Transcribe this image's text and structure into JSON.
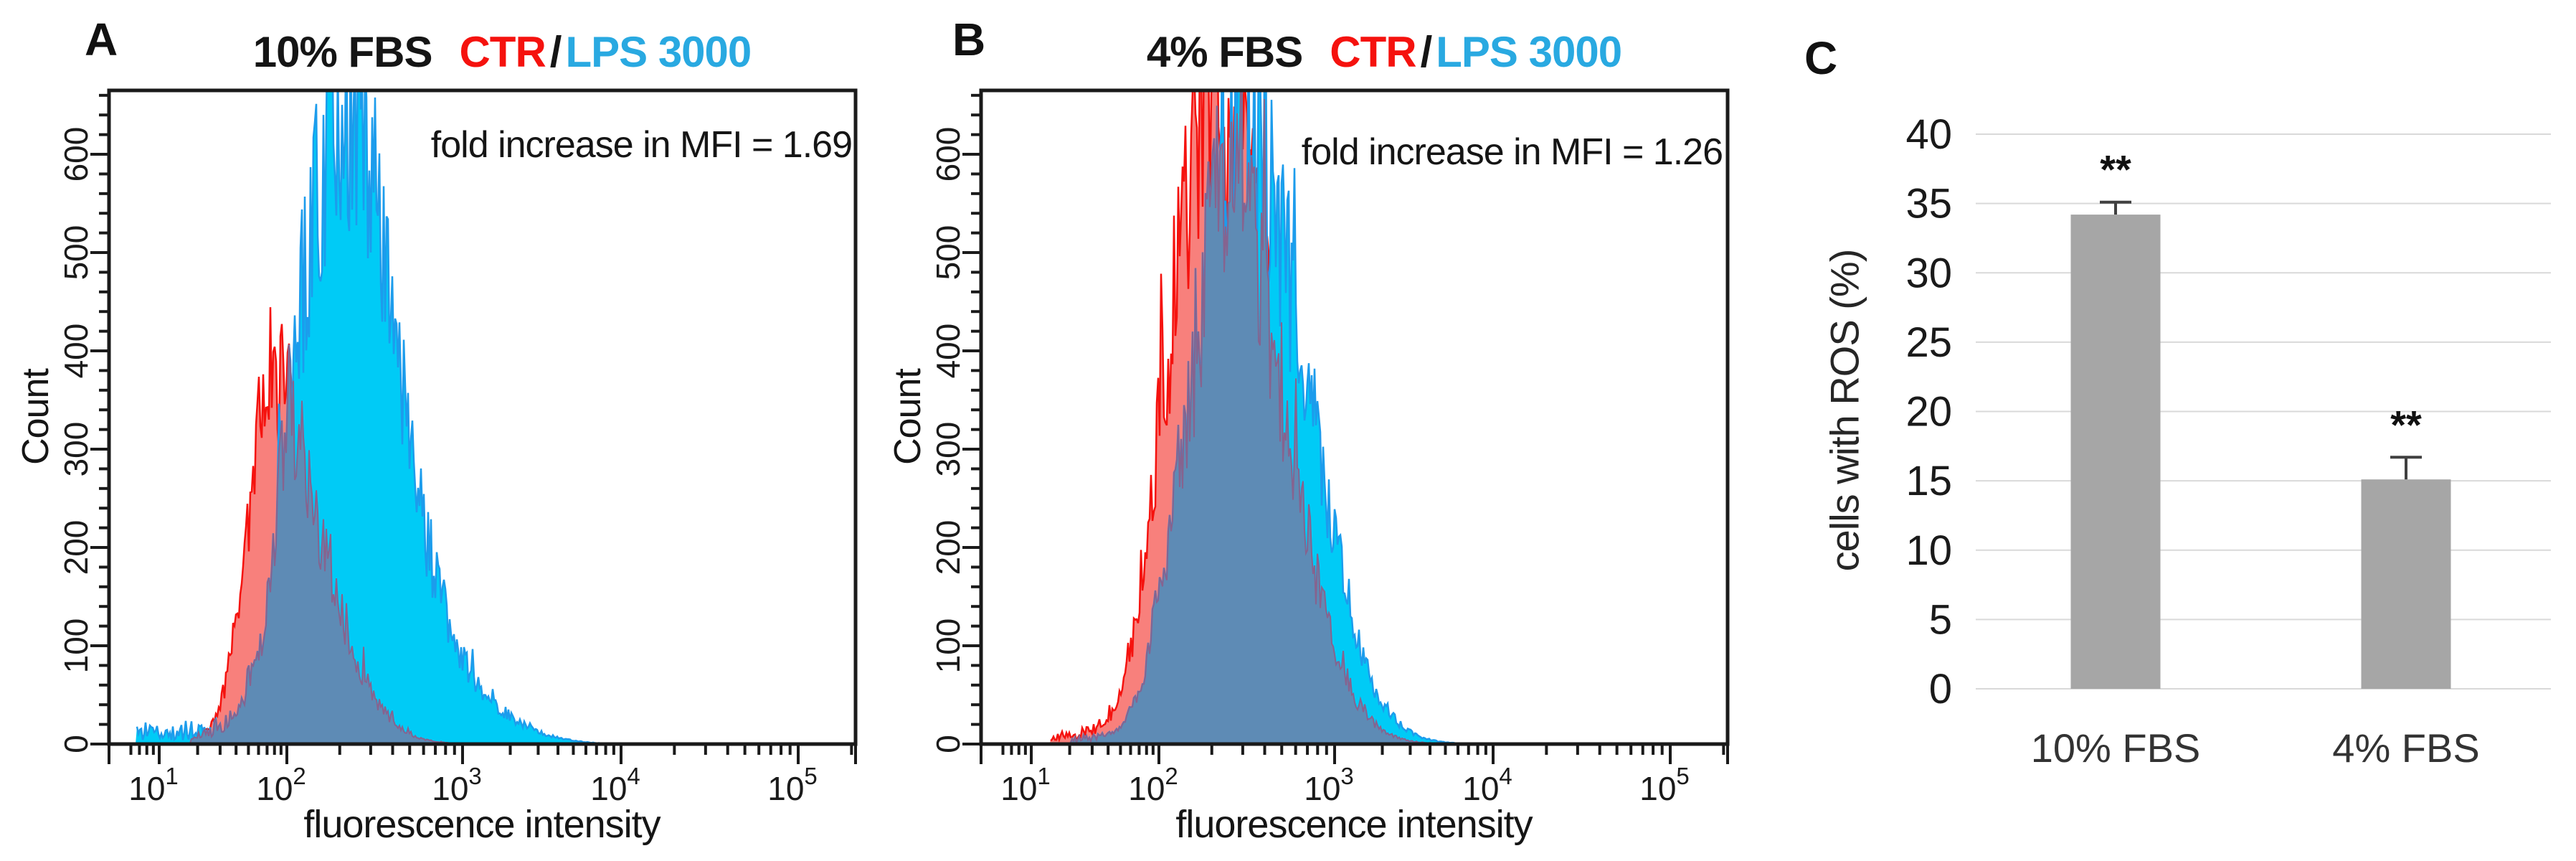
{
  "figure": {
    "panels": [
      {
        "letter": "A",
        "title_condition": "10% FBS",
        "title_ctr": "CTR",
        "title_slash": "/",
        "title_lps": "LPS 3000",
        "annotation": "fold increase in MFI = 1.69",
        "xlabel": "fluorescence intensity",
        "ylabel": "Count"
      },
      {
        "letter": "B",
        "title_condition": "4% FBS",
        "title_ctr": "CTR",
        "title_slash": "/",
        "title_lps": "LPS 3000",
        "annotation": "fold increase in MFI = 1.26",
        "xlabel": "fluorescence intensity",
        "ylabel": "Count"
      }
    ],
    "panelC": {
      "letter": "C",
      "ylabel": "cells with ROS (%)"
    }
  },
  "colors": {
    "ctr_line": "#f5120e",
    "ctr_fill": "#f8807c",
    "lps_line": "#1c9cec",
    "lps_fill": "#00cbf6",
    "overlap_fill": "#5e8bb5",
    "overlap_line": "#86638f",
    "title_lps_text": "#29a9e1",
    "axis": "#1a1a1a",
    "bar": "#a6a6a6",
    "gridline": "#d9d9d9",
    "error_bar": "#404040"
  },
  "chart_data": [
    {
      "type": "area",
      "panel": "A",
      "title": "10% FBS CTR / LPS 3000",
      "xlabel": "fluorescence intensity",
      "ylabel": "Count",
      "x_scale": "log10",
      "x_range_log10": [
        0.8,
        5.45
      ],
      "ylim": [
        0,
        665
      ],
      "x_tick_exponents": [
        1,
        2,
        3,
        4,
        5
      ],
      "y_ticks": [
        0,
        100,
        200,
        300,
        400,
        500,
        600
      ],
      "y_minor_step": 20,
      "grid": false,
      "annotation": "fold increase in MFI = 1.69",
      "series": [
        {
          "name": "CTR",
          "peak_log10_x": 1.87,
          "peak_x": 74,
          "peak_count": 378,
          "sigma_left": 0.18,
          "sigma_right": 0.31,
          "noise_floor": {
            "from_log10": 1.25,
            "to_log10": 1.62,
            "amplitude": 9
          },
          "envelope_log10_x": [
            1.2,
            1.4,
            1.5,
            1.6,
            1.7,
            1.8,
            1.87,
            2.0,
            2.2,
            2.4,
            2.6,
            2.8,
            3.0
          ],
          "envelope_counts": [
            2,
            15,
            45,
            123,
            242,
            350,
            378,
            346,
            214,
            88,
            23,
            4,
            0
          ]
        },
        {
          "name": "LPS 3000",
          "peak_log10_x": 2.31,
          "peak_x": 204,
          "peak_count": 640,
          "sigma_left": 0.27,
          "sigma_right": 0.3,
          "tail_bump": {
            "center_log10": 2.95,
            "sigma": 0.33,
            "fraction": 0.07
          },
          "noise_floor": {
            "from_log10": 0.82,
            "to_log10": 1.75,
            "amplitude": 20
          },
          "envelope_log10_x": [
            1.0,
            1.2,
            1.4,
            1.6,
            1.8,
            2.0,
            2.15,
            2.31,
            2.5,
            2.7,
            2.9,
            3.1,
            3.3,
            3.5,
            3.7,
            3.9
          ],
          "envelope_counts": [
            12,
            14,
            16,
            28,
            107,
            333,
            538,
            640,
            523,
            307,
            134,
            58,
            28,
            11,
            3,
            0
          ]
        }
      ]
    },
    {
      "type": "area",
      "panel": "B",
      "title": "4% FBS CTR / LPS 3000",
      "xlabel": "fluorescence intensity",
      "ylabel": "Count",
      "x_scale": "log10",
      "x_range_log10": [
        0.8,
        5.45
      ],
      "ylim": [
        0,
        665
      ],
      "x_tick_exponents": [
        1,
        2,
        3,
        4,
        5
      ],
      "y_ticks": [
        0,
        100,
        200,
        300,
        400,
        500,
        600
      ],
      "y_minor_step": 20,
      "grid": false,
      "annotation": "fold increase in MFI = 1.26",
      "series": [
        {
          "name": "CTR",
          "peak_log10_x": 2.31,
          "peak_x": 204,
          "peak_count": 640,
          "sigma_left": 0.27,
          "sigma_right": 0.36,
          "noise_floor": {
            "from_log10": 1.15,
            "to_log10": 1.95,
            "amplitude": 12
          },
          "envelope_log10_x": [
            1.2,
            1.4,
            1.6,
            1.8,
            2.0,
            2.31,
            2.6,
            2.9,
            3.1,
            3.3,
            3.5,
            3.7
          ],
          "envelope_counts": [
            8,
            10,
            30,
            115,
            333,
            640,
            463,
            167,
            56,
            14,
            3,
            0
          ]
        },
        {
          "name": "LPS 3000",
          "peak_log10_x": 2.47,
          "peak_x": 295,
          "peak_count": 620,
          "sigma_left": 0.28,
          "sigma_right": 0.36,
          "noise_floor": {
            "from_log10": 1.3,
            "to_log10": 2.0,
            "amplitude": 8
          },
          "envelope_log10_x": [
            1.4,
            1.6,
            1.8,
            2.0,
            2.2,
            2.47,
            2.7,
            2.9,
            3.1,
            3.3,
            3.5,
            3.7,
            3.9
          ],
          "envelope_counts": [
            6,
            7,
            35,
            151,
            390,
            620,
            505,
            304,
            134,
            43,
            10,
            2,
            0
          ]
        }
      ]
    },
    {
      "type": "bar",
      "panel": "C",
      "ylabel": "cells with ROS (%)",
      "categories": [
        "10% FBS",
        "4% FBS"
      ],
      "values": [
        34.2,
        15.1
      ],
      "errors_plus": [
        0.9,
        1.6
      ],
      "significance": [
        "**",
        "**"
      ],
      "y_ticks": [
        0,
        5,
        10,
        15,
        20,
        25,
        30,
        35,
        40
      ],
      "ylim": [
        0,
        40
      ],
      "grid": true,
      "legend": null
    }
  ]
}
